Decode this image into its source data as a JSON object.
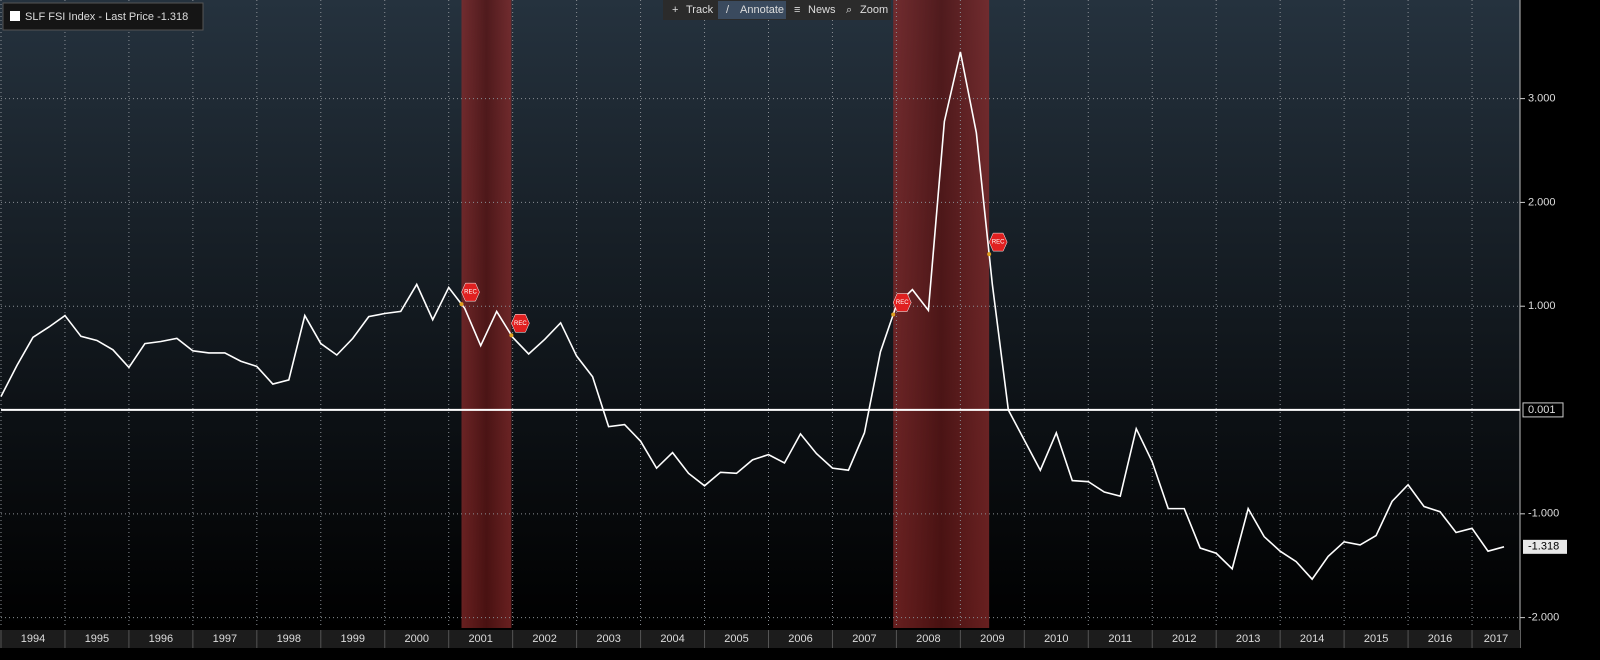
{
  "toolbar": [
    "Track",
    "Annotate",
    "News",
    "Zoom"
  ],
  "chart_data": {
    "type": "line",
    "series": [
      {
        "name": "SLF FSI Index - Last Price",
        "color": "#ffffff",
        "values": [
          0.13,
          0.43,
          0.7,
          0.8,
          0.91,
          0.71,
          0.67,
          0.58,
          0.41,
          0.64,
          0.66,
          0.69,
          0.57,
          0.55,
          0.55,
          0.47,
          0.42,
          0.25,
          0.29,
          0.91,
          0.64,
          0.53,
          0.69,
          0.9,
          0.93,
          0.95,
          1.21,
          0.87,
          1.18,
          0.98,
          0.62,
          0.95,
          0.7,
          0.54,
          0.68,
          0.84,
          0.52,
          0.32,
          -0.16,
          -0.14,
          -0.3,
          -0.56,
          -0.41,
          -0.61,
          -0.73,
          -0.6,
          -0.61,
          -0.48,
          -0.43,
          -0.51,
          -0.23,
          -0.42,
          -0.56,
          -0.58,
          -0.22,
          0.56,
          1.01,
          1.16,
          0.96,
          2.78,
          3.45,
          2.67,
          1.21,
          0.0,
          -0.29,
          -0.58,
          -0.22,
          -0.68,
          -0.69,
          -0.79,
          -0.83,
          -0.18,
          -0.5,
          -0.95,
          -0.95,
          -1.33,
          -1.38,
          -1.53,
          -0.95,
          -1.22,
          -1.36,
          -1.46,
          -1.63,
          -1.41,
          -1.27,
          -1.3,
          -1.21,
          -0.88,
          -0.72,
          -0.93,
          -0.98,
          -1.18,
          -1.14,
          -1.36,
          -1.318
        ]
      }
    ],
    "x": [
      1994,
      1994.25,
      1994.5,
      1994.75,
      1995,
      1995.25,
      1995.5,
      1995.75,
      1996,
      1996.25,
      1996.5,
      1996.75,
      1997,
      1997.25,
      1997.5,
      1997.75,
      1998,
      1998.25,
      1998.5,
      1998.75,
      1999,
      1999.25,
      1999.5,
      1999.75,
      2000,
      2000.25,
      2000.5,
      2000.75,
      2001,
      2001.25,
      2001.5,
      2001.75,
      2002,
      2002.25,
      2002.5,
      2002.75,
      2003,
      2003.25,
      2003.5,
      2003.75,
      2004,
      2004.25,
      2004.5,
      2004.75,
      2005,
      2005.25,
      2005.5,
      2005.75,
      2006,
      2006.25,
      2006.5,
      2006.75,
      2007,
      2007.25,
      2007.5,
      2007.75,
      2008,
      2008.25,
      2008.5,
      2008.75,
      2009,
      2009.25,
      2009.5,
      2009.75,
      2010,
      2010.25,
      2010.5,
      2010.75,
      2011,
      2011.25,
      2011.5,
      2011.75,
      2012,
      2012.25,
      2012.5,
      2012.75,
      2013,
      2013.25,
      2013.5,
      2013.75,
      2014,
      2014.25,
      2014.5,
      2014.75,
      2015,
      2015.25,
      2015.5,
      2015.75,
      2016,
      2016.25,
      2016.5,
      2016.75,
      2017,
      2017.25,
      2017.5
    ],
    "xlim": [
      1994,
      2017.75
    ],
    "xticks": [
      1994,
      1995,
      1996,
      1997,
      1998,
      1999,
      2000,
      2001,
      2002,
      2003,
      2004,
      2005,
      2006,
      2007,
      2008,
      2009,
      2010,
      2011,
      2012,
      2013,
      2014,
      2015,
      2016,
      2017
    ],
    "ylim": [
      -2.1,
      3.95
    ],
    "yticks": [
      {
        "value": 3,
        "label": "3.000"
      },
      {
        "value": 2,
        "label": "2.000"
      },
      {
        "value": 1,
        "label": "1.000"
      },
      {
        "value": -1,
        "label": "-1.000"
      },
      {
        "value": -2,
        "label": "-2.000"
      }
    ],
    "hline": {
      "value": 0.001,
      "label": "0.001"
    },
    "recessions": [
      {
        "start": 2001.2,
        "end": 2001.98,
        "label": "REC"
      },
      {
        "start": 2007.95,
        "end": 2009.45,
        "label": "REC"
      }
    ],
    "grid": true
  }
}
